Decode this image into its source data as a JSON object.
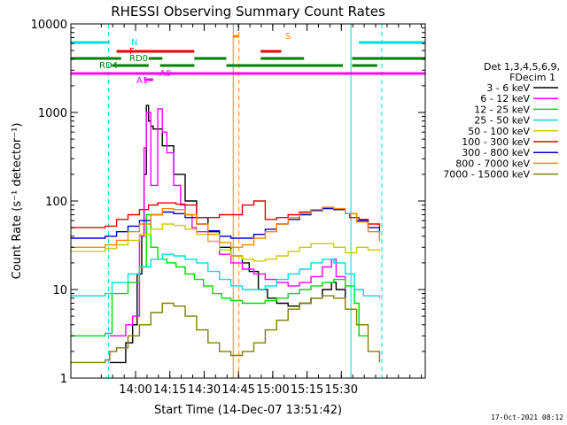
{
  "chart_data": {
    "type": "line",
    "title": "RHESSI Observing Summary Count Rates",
    "xlabel": "Start Time (14-Dec-07 13:51:42)",
    "ylabel": "Count Rate (s⁻¹ detector⁻¹)",
    "y_scale": "log",
    "ylim": [
      1,
      10000
    ],
    "xlim_minutes": [
      -20,
      135
    ],
    "x_tick_labels": [
      "14:00",
      "14:15",
      "14:30",
      "14:45",
      "15:00",
      "15:15",
      "15:30"
    ],
    "y_tick_labels": [
      "1",
      "10",
      "100",
      "1000",
      "10000"
    ],
    "footer_date": "17-Oct-2021 08:12",
    "legend": {
      "header": [
        "Det 1,3,4,5,6,9,",
        "FDecim 1"
      ],
      "entries": [
        {
          "label": "3 - 6 keV",
          "color": "#000000"
        },
        {
          "label": "6 - 12 keV",
          "color": "#ff00ff"
        },
        {
          "label": "12 - 25 keV",
          "color": "#00dd00"
        },
        {
          "label": "25 - 50 keV",
          "color": "#00dddd"
        },
        {
          "label": "50 - 100 keV",
          "color": "#cccc00"
        },
        {
          "label": "100 - 300 keV",
          "color": "#ee0000"
        },
        {
          "label": "300 - 800 keV",
          "color": "#0000cc"
        },
        {
          "label": "800 - 7000 keV",
          "color": "#ff8800"
        },
        {
          "label": "7000 - 15000 keV",
          "color": "#808000"
        }
      ]
    },
    "flag_labels": {
      "night": "N",
      "flare": "F",
      "saa": "S",
      "rd0": "RD0",
      "rd4": "RD4",
      "a0": "A0",
      "a1": "A1"
    },
    "flags": {
      "night": {
        "color": "#00dddd",
        "segments": [
          [
            -20,
            -3
          ],
          [
            106,
            135
          ]
        ]
      },
      "flare": {
        "color": "#ee0000",
        "segments": [
          [
            0,
            34
          ],
          [
            63,
            72
          ]
        ]
      },
      "saa": {
        "color": "#ff8800",
        "segments": [
          [
            51,
            53.5
          ]
        ]
      },
      "rd0": {
        "color": "#008000",
        "segments": [
          [
            -20,
            2
          ],
          [
            14,
            20
          ],
          [
            34,
            48
          ],
          [
            63,
            82
          ],
          [
            103,
            135
          ]
        ]
      },
      "rd4": {
        "color": "#008000",
        "segments": [
          [
            -2,
            14
          ],
          [
            19,
            34
          ],
          [
            48,
            99
          ],
          [
            103,
            114
          ]
        ]
      },
      "a0": {
        "color": "#ff00ff",
        "segments": [
          [
            -20,
            135
          ]
        ]
      },
      "a1": {
        "color": "#ff00ff",
        "segments": [
          [
            12,
            16
          ]
        ]
      }
    },
    "vertical_lines": [
      {
        "minute": -20,
        "color": "#00dddd",
        "style": "solid"
      },
      {
        "minute": -3.5,
        "color": "#00dddd",
        "style": "dashed"
      },
      {
        "minute": 51,
        "color": "#ff8800",
        "style": "solid"
      },
      {
        "minute": 53.5,
        "color": "#ff8800",
        "style": "dashed"
      },
      {
        "minute": 102.5,
        "color": "#00dddd",
        "style": "solid"
      },
      {
        "minute": 116,
        "color": "#00dddd",
        "style": "dashed"
      }
    ],
    "series": [
      {
        "name": "3 - 6 keV",
        "color": "#000000",
        "x": [
          -3,
          4,
          7,
          9,
          11,
          12,
          13,
          14,
          15,
          16,
          20,
          25,
          30,
          35,
          40,
          45,
          50,
          55,
          58,
          62,
          66,
          70,
          75,
          80,
          85,
          90,
          94,
          96,
          100
        ],
        "y": [
          1.5,
          2.5,
          4,
          15,
          40,
          200,
          1200,
          800,
          700,
          650,
          420,
          200,
          100,
          65,
          45,
          30,
          24,
          20,
          16,
          10,
          8,
          7,
          6.5,
          7,
          8,
          10,
          12,
          10,
          8
        ]
      },
      {
        "name": "6 - 12 keV",
        "color": "#ff00ff",
        "x": [
          -3,
          4,
          7,
          10,
          12,
          13,
          15,
          18,
          20,
          22,
          25,
          28,
          30,
          33,
          35,
          40,
          45,
          50,
          55,
          60,
          65,
          70,
          75,
          80,
          85,
          90,
          94,
          96,
          100
        ],
        "y": [
          3,
          4,
          5,
          40,
          400,
          1000,
          150,
          1100,
          600,
          350,
          150,
          90,
          70,
          50,
          45,
          35,
          25,
          20,
          17,
          15,
          13,
          12,
          11,
          12,
          14,
          18,
          22,
          14,
          10
        ]
      },
      {
        "name": "12 - 25 keV",
        "color": "#00dd00",
        "x": [
          -20,
          -5,
          -2,
          5,
          10,
          13,
          15,
          18,
          22,
          26,
          30,
          34,
          38,
          42,
          46,
          50,
          55,
          60,
          65,
          70,
          75,
          80,
          85,
          90,
          95,
          100,
          104,
          106,
          110
        ],
        "y": [
          3,
          3.2,
          9,
          12,
          18,
          70,
          30,
          22,
          20,
          18,
          15,
          13,
          11,
          9,
          8,
          7.5,
          7,
          7,
          7.5,
          8,
          9,
          10,
          11,
          12,
          13,
          11,
          7,
          3,
          3
        ]
      },
      {
        "name": "25 - 50 keV",
        "color": "#00dddd",
        "x": [
          -20,
          -5,
          -2,
          5,
          10,
          15,
          20,
          25,
          30,
          35,
          40,
          45,
          50,
          55,
          60,
          65,
          70,
          75,
          80,
          85,
          90,
          95,
          100,
          104,
          108,
          115
        ],
        "y": [
          8.5,
          9,
          12,
          15,
          18,
          22,
          25,
          24,
          22,
          20,
          16,
          13,
          11,
          10,
          10,
          11,
          13,
          15,
          17,
          20,
          22,
          20,
          15,
          10,
          8.5,
          8
        ]
      },
      {
        "name": "50 - 100 keV",
        "color": "#cccc00",
        "x": [
          -20,
          -5,
          0,
          5,
          10,
          15,
          20,
          25,
          30,
          35,
          40,
          45,
          50,
          55,
          60,
          65,
          70,
          75,
          80,
          85,
          90,
          95,
          100,
          105,
          110,
          115
        ],
        "y": [
          27,
          29,
          32,
          36,
          42,
          48,
          55,
          53,
          48,
          42,
          35,
          28,
          24,
          22,
          21,
          22,
          24,
          27,
          30,
          33,
          33,
          30,
          26,
          30,
          28,
          27
        ]
      },
      {
        "name": "100 - 300 keV",
        "color": "#ee0000",
        "x": [
          -20,
          -5,
          0,
          5,
          10,
          14,
          18,
          22,
          26,
          30,
          34,
          35,
          45,
          55,
          60,
          65,
          70,
          75,
          80,
          85,
          90,
          95,
          100,
          102,
          106,
          110,
          115
        ],
        "y": [
          50,
          52,
          62,
          70,
          80,
          90,
          95,
          95,
          92,
          90,
          90,
          65,
          70,
          90,
          100,
          62,
          65,
          70,
          75,
          80,
          83,
          80,
          72,
          65,
          62,
          55,
          50
        ]
      },
      {
        "name": "300 - 800 keV",
        "color": "#0000cc",
        "x": [
          -20,
          -5,
          0,
          5,
          10,
          15,
          20,
          25,
          30,
          35,
          40,
          45,
          50,
          55,
          60,
          65,
          70,
          75,
          80,
          85,
          90,
          95,
          100,
          105,
          110,
          115
        ],
        "y": [
          38,
          40,
          45,
          52,
          60,
          70,
          75,
          72,
          65,
          55,
          46,
          40,
          38,
          38,
          42,
          48,
          55,
          62,
          70,
          78,
          82,
          80,
          72,
          60,
          50,
          42
        ]
      },
      {
        "name": "800 - 7000 keV",
        "color": "#ff8800",
        "x": [
          -20,
          -5,
          0,
          5,
          10,
          15,
          20,
          25,
          30,
          35,
          40,
          45,
          50,
          55,
          60,
          65,
          70,
          75,
          80,
          85,
          90,
          95,
          100,
          105,
          110,
          115
        ],
        "y": [
          30,
          32,
          36,
          45,
          55,
          70,
          82,
          80,
          70,
          55,
          42,
          34,
          30,
          32,
          38,
          45,
          55,
          65,
          72,
          80,
          85,
          82,
          72,
          58,
          45,
          35
        ]
      },
      {
        "name": "7000 - 15000 keV",
        "color": "#808000",
        "x": [
          -20,
          -5,
          -3,
          0,
          5,
          10,
          15,
          20,
          25,
          30,
          35,
          40,
          45,
          50,
          55,
          60,
          65,
          70,
          75,
          80,
          85,
          90,
          95,
          100,
          105,
          110,
          115
        ],
        "y": [
          1.5,
          1.6,
          2,
          2.2,
          3,
          4,
          5.5,
          7,
          6.5,
          5,
          3.5,
          2.5,
          2,
          1.8,
          2,
          2.5,
          3.5,
          4.5,
          6,
          7,
          8,
          8.5,
          8,
          6,
          4,
          2,
          1.5
        ]
      }
    ]
  }
}
